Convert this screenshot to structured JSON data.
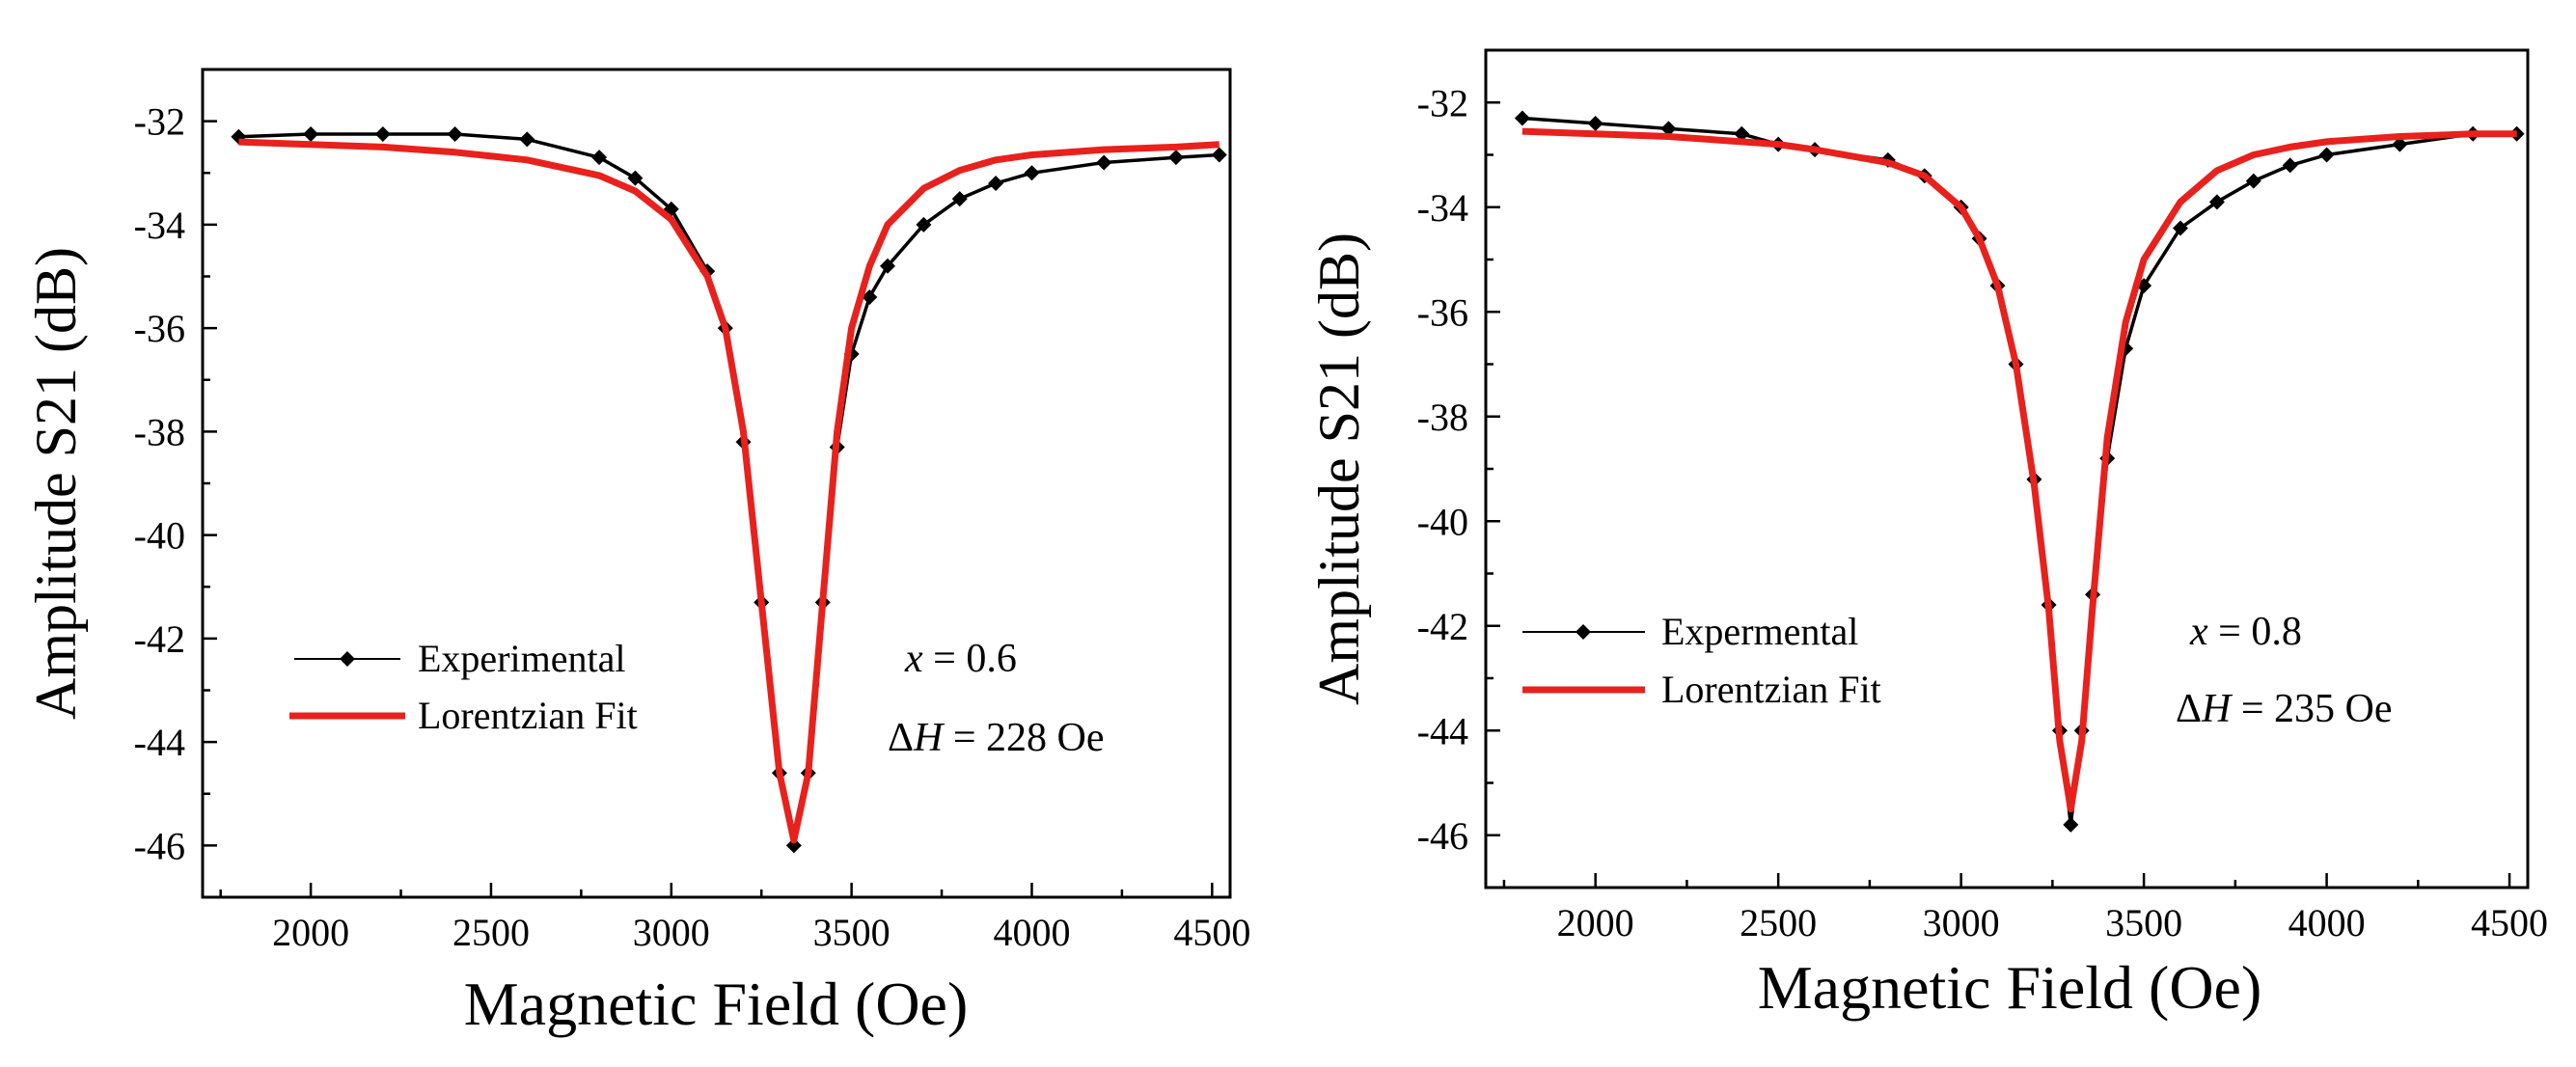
{
  "chart_data": [
    {
      "type": "line",
      "title": "",
      "xlabel": "Magnetic Field (Oe)",
      "ylabel": "Amplitude S21 (dB)",
      "xlim": [
        1700,
        4550
      ],
      "ylim": [
        -47,
        -31
      ],
      "x_ticks": [
        2000,
        2500,
        3000,
        3500,
        4000,
        4500
      ],
      "y_ticks": [
        -46,
        -44,
        -42,
        -40,
        -38,
        -36,
        -34,
        -32
      ],
      "grid": false,
      "legend_position": "lower-left",
      "series": [
        {
          "name": "Experimental",
          "style": "black-line-diamond-markers",
          "color": "#000000",
          "x": [
            1800,
            2000,
            2200,
            2400,
            2600,
            2800,
            2900,
            3000,
            3100,
            3150,
            3200,
            3250,
            3300,
            3340,
            3380,
            3420,
            3460,
            3500,
            3550,
            3600,
            3700,
            3800,
            3900,
            4000,
            4200,
            4400,
            4520
          ],
          "y": [
            -32.3,
            -32.25,
            -32.25,
            -32.25,
            -32.35,
            -32.7,
            -33.1,
            -33.7,
            -34.9,
            -36.0,
            -38.2,
            -41.3,
            -44.6,
            -46.0,
            -44.6,
            -41.3,
            -38.3,
            -36.5,
            -35.4,
            -34.8,
            -34.0,
            -33.5,
            -33.2,
            -33.0,
            -32.8,
            -32.7,
            -32.65
          ]
        },
        {
          "name": "Lorentzian Fit",
          "style": "red-line",
          "color": "#e8211d",
          "x": [
            1800,
            2000,
            2200,
            2400,
            2600,
            2800,
            2900,
            3000,
            3100,
            3150,
            3200,
            3250,
            3300,
            3340,
            3380,
            3420,
            3460,
            3500,
            3550,
            3600,
            3700,
            3800,
            3900,
            4000,
            4200,
            4400,
            4520
          ],
          "y": [
            -32.4,
            -32.45,
            -32.5,
            -32.6,
            -32.75,
            -33.05,
            -33.35,
            -33.9,
            -35.0,
            -36.0,
            -38.0,
            -41.3,
            -44.6,
            -45.9,
            -44.6,
            -41.3,
            -38.0,
            -36.0,
            -34.8,
            -34.0,
            -33.3,
            -32.95,
            -32.75,
            -32.65,
            -32.55,
            -32.5,
            -32.45
          ]
        }
      ],
      "annotations": [
        {
          "var": "x",
          "text": " = 0.6"
        },
        {
          "delta": "Δ",
          "var": "H",
          "text": " = 228 Oe"
        }
      ]
    },
    {
      "type": "line",
      "title": "",
      "xlabel": "Magnetic Field (Oe)",
      "ylabel": "Amplitude S21 (dB)",
      "xlim": [
        1700,
        4550
      ],
      "ylim": [
        -47,
        -31
      ],
      "x_ticks": [
        2000,
        2500,
        3000,
        3500,
        4000,
        4500
      ],
      "y_ticks": [
        -46,
        -44,
        -42,
        -40,
        -38,
        -36,
        -34,
        -32
      ],
      "grid": false,
      "legend_position": "lower-left",
      "series": [
        {
          "name": "Expermental",
          "style": "black-line-diamond-markers",
          "color": "#000000",
          "x": [
            1800,
            2000,
            2200,
            2400,
            2500,
            2600,
            2800,
            2900,
            3000,
            3050,
            3100,
            3150,
            3200,
            3240,
            3270,
            3300,
            3330,
            3360,
            3400,
            3450,
            3500,
            3600,
            3700,
            3800,
            3900,
            4000,
            4200,
            4400,
            4520
          ],
          "y": [
            -32.3,
            -32.4,
            -32.5,
            -32.6,
            -32.8,
            -32.9,
            -33.1,
            -33.4,
            -34.0,
            -34.6,
            -35.5,
            -37.0,
            -39.2,
            -41.6,
            -44.0,
            -45.8,
            -44.0,
            -41.4,
            -38.8,
            -36.7,
            -35.5,
            -34.4,
            -33.9,
            -33.5,
            -33.2,
            -33.0,
            -32.8,
            -32.6,
            -32.6
          ]
        },
        {
          "name": "Lorentzian Fit",
          "style": "red-line",
          "color": "#e8211d",
          "x": [
            1800,
            2000,
            2200,
            2400,
            2500,
            2600,
            2800,
            2900,
            3000,
            3050,
            3100,
            3150,
            3200,
            3240,
            3270,
            3300,
            3330,
            3360,
            3400,
            3450,
            3500,
            3600,
            3700,
            3800,
            3900,
            4000,
            4200,
            4400,
            4520
          ],
          "y": [
            -32.55,
            -32.6,
            -32.65,
            -32.75,
            -32.8,
            -32.9,
            -33.15,
            -33.4,
            -34.0,
            -34.6,
            -35.5,
            -37.0,
            -39.3,
            -41.7,
            -44.2,
            -45.5,
            -44.2,
            -41.6,
            -38.4,
            -36.2,
            -35.0,
            -33.9,
            -33.3,
            -33.0,
            -32.85,
            -32.75,
            -32.65,
            -32.6,
            -32.6
          ]
        }
      ],
      "annotations": [
        {
          "var": "x",
          "text": " = 0.8"
        },
        {
          "delta": "Δ",
          "var": "H",
          "text": " = 235 Oe"
        }
      ]
    }
  ]
}
